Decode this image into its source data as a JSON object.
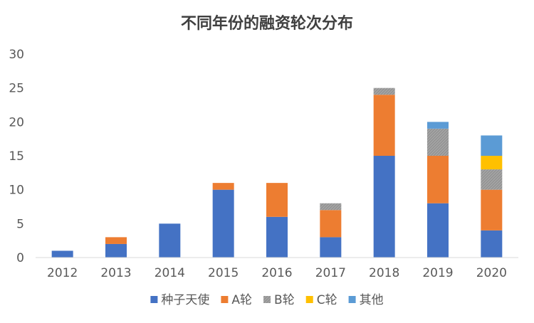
{
  "chart_data": {
    "type": "bar",
    "stacked": true,
    "title": "不同年份的融资轮次分布",
    "xlabel": "",
    "ylabel": "",
    "ylim": [
      0,
      30
    ],
    "yticks": [
      0,
      5,
      10,
      15,
      20,
      25,
      30
    ],
    "grid": false,
    "legend_position": "bottom",
    "categories": [
      "2012",
      "2013",
      "2014",
      "2015",
      "2016",
      "2017",
      "2018",
      "2019",
      "2020"
    ],
    "series": [
      {
        "name": "种子天使",
        "color": "#4472C4",
        "values": [
          1,
          2,
          5,
          10,
          6,
          3,
          15,
          8,
          4
        ]
      },
      {
        "name": "A轮",
        "color": "#ED7D31",
        "values": [
          0,
          1,
          0,
          1,
          5,
          4,
          9,
          7,
          6
        ]
      },
      {
        "name": "B轮",
        "color": "#A5A5A5",
        "pattern": "hatched",
        "values": [
          0,
          0,
          0,
          0,
          0,
          1,
          1,
          4,
          3
        ]
      },
      {
        "name": "C轮",
        "color": "#FFC000",
        "values": [
          0,
          0,
          0,
          0,
          0,
          0,
          0,
          0,
          2
        ]
      },
      {
        "name": "其他",
        "color": "#5B9BD5",
        "values": [
          0,
          0,
          0,
          0,
          0,
          0,
          0,
          1,
          3
        ]
      }
    ]
  }
}
